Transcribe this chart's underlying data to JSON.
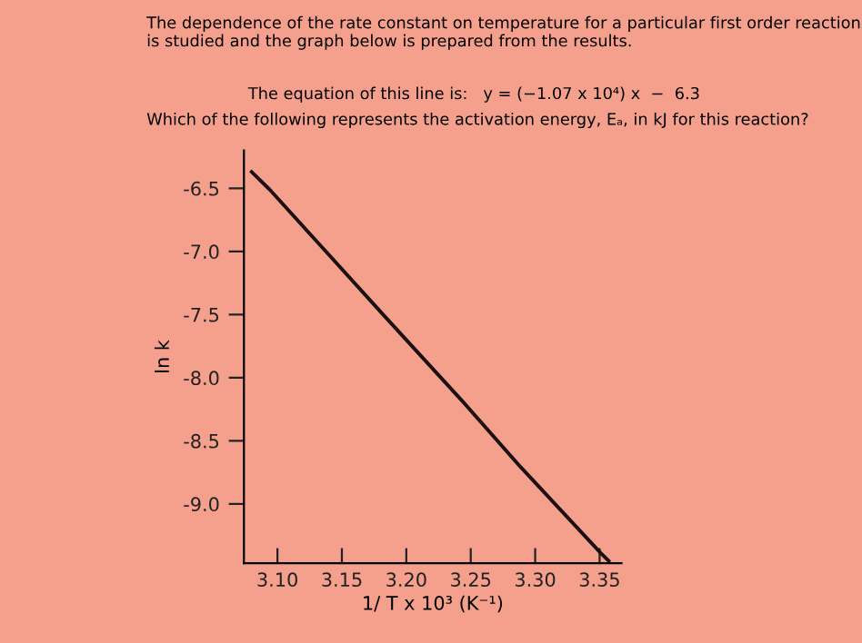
{
  "chart_data": {
    "type": "line",
    "title": "The dependence of the rate constant on temperature for a particular first order reaction is studied and the graph below is prepared from the results.",
    "annotations": [
      "The equation of this line is:   y = (−1.07 x 10⁴) x  −  6.3",
      "Which of the following represents the activation energy, Eₐ, in kJ for this reaction?"
    ],
    "xlabel": "1/ T x 10³ (K⁻¹)",
    "ylabel": "ln k",
    "series": [
      {
        "color": "#1a1010",
        "x": [
          3.08,
          3.094,
          3.134,
          3.182,
          3.243,
          3.288,
          3.351,
          3.357
        ],
        "values": [
          -6.37,
          -6.51,
          -6.96,
          -7.5,
          -8.18,
          -8.7,
          -9.39,
          -9.45
        ]
      }
    ],
    "xlim": [
      3.074,
      3.367
    ],
    "ylim": [
      -9.47,
      -6.2
    ],
    "xticks": [
      {
        "value": 3.1,
        "label": "3.10"
      },
      {
        "value": 3.15,
        "label": "3.15"
      },
      {
        "value": 3.2,
        "label": "3.20"
      },
      {
        "value": 3.25,
        "label": "3.25"
      },
      {
        "value": 3.3,
        "label": "3.30"
      },
      {
        "value": 3.35,
        "label": "3.35"
      }
    ],
    "yticks": [
      {
        "value": -6.5,
        "label": "-6.5"
      },
      {
        "value": -7.0,
        "label": "-7.0"
      },
      {
        "value": -7.5,
        "label": "-7.5"
      },
      {
        "value": -8.0,
        "label": "-8.0"
      },
      {
        "value": -8.5,
        "label": "-8.5"
      },
      {
        "value": -9.0,
        "label": "-9.0"
      }
    ],
    "grid": false,
    "legend": false,
    "line_style": "solid"
  }
}
